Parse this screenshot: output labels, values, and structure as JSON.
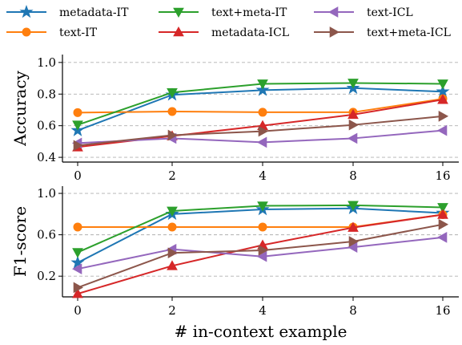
{
  "chart_data": {
    "type": "line",
    "x_categories": [
      "0",
      "2",
      "4",
      "8",
      "16"
    ],
    "xlabel": "# in-context example",
    "legend": {
      "placement": "top",
      "entries": [
        "metadata-IT",
        "text+meta-IT",
        "text-ICL",
        "text-IT",
        "metadata-ICL",
        "text+meta-ICL"
      ]
    },
    "panels": [
      {
        "ylabel": "Accuracy",
        "ylim": [
          0.37,
          1.05
        ],
        "yticks": [
          0.4,
          0.6,
          0.8,
          1.0
        ],
        "ytick_labels": [
          "0.4",
          "0.6",
          "0.8",
          "1.0"
        ],
        "grid": true,
        "series": [
          {
            "name": "metadata-IT",
            "color": "#1f77b4",
            "marker": "star",
            "values": [
              0.57,
              0.795,
              0.825,
              0.838,
              0.815
            ]
          },
          {
            "name": "text-IT",
            "color": "#ff7f0e",
            "marker": "circle",
            "values": [
              0.683,
              0.69,
              0.685,
              0.685,
              0.77
            ]
          },
          {
            "name": "text+meta-IT",
            "color": "#2ca02c",
            "marker": "triangle-down",
            "values": [
              0.605,
              0.81,
              0.865,
              0.87,
              0.865
            ]
          },
          {
            "name": "metadata-ICL",
            "color": "#d62728",
            "marker": "triangle-up",
            "values": [
              0.465,
              0.535,
              0.6,
              0.67,
              0.765
            ]
          },
          {
            "name": "text-ICL",
            "color": "#9467bd",
            "marker": "triangle-left",
            "values": [
              0.49,
              0.52,
              0.495,
              0.52,
              0.57
            ]
          },
          {
            "name": "text+meta-ICL",
            "color": "#8c564b",
            "marker": "triangle-right",
            "values": [
              0.475,
              0.54,
              0.565,
              0.605,
              0.66
            ]
          }
        ]
      },
      {
        "ylabel": "F1-score",
        "ylim": [
          0.0,
          1.07
        ],
        "yticks": [
          0.2,
          0.6,
          1.0
        ],
        "ytick_labels": [
          "0.2",
          "0.6",
          "1.0"
        ],
        "grid": true,
        "series": [
          {
            "name": "metadata-IT",
            "color": "#1f77b4",
            "marker": "star",
            "values": [
              0.33,
              0.8,
              0.845,
              0.855,
              0.81
            ]
          },
          {
            "name": "text-IT",
            "color": "#ff7f0e",
            "marker": "circle",
            "values": [
              0.675,
              0.675,
              0.675,
              0.675,
              0.795
            ]
          },
          {
            "name": "text+meta-IT",
            "color": "#2ca02c",
            "marker": "triangle-down",
            "values": [
              0.43,
              0.83,
              0.88,
              0.885,
              0.865
            ]
          },
          {
            "name": "metadata-ICL",
            "color": "#d62728",
            "marker": "triangle-up",
            "values": [
              0.03,
              0.3,
              0.5,
              0.67,
              0.795
            ]
          },
          {
            "name": "text-ICL",
            "color": "#9467bd",
            "marker": "triangle-left",
            "values": [
              0.27,
              0.46,
              0.39,
              0.48,
              0.575
            ]
          },
          {
            "name": "text+meta-ICL",
            "color": "#8c564b",
            "marker": "triangle-right",
            "values": [
              0.09,
              0.425,
              0.45,
              0.535,
              0.7
            ]
          }
        ]
      }
    ]
  }
}
